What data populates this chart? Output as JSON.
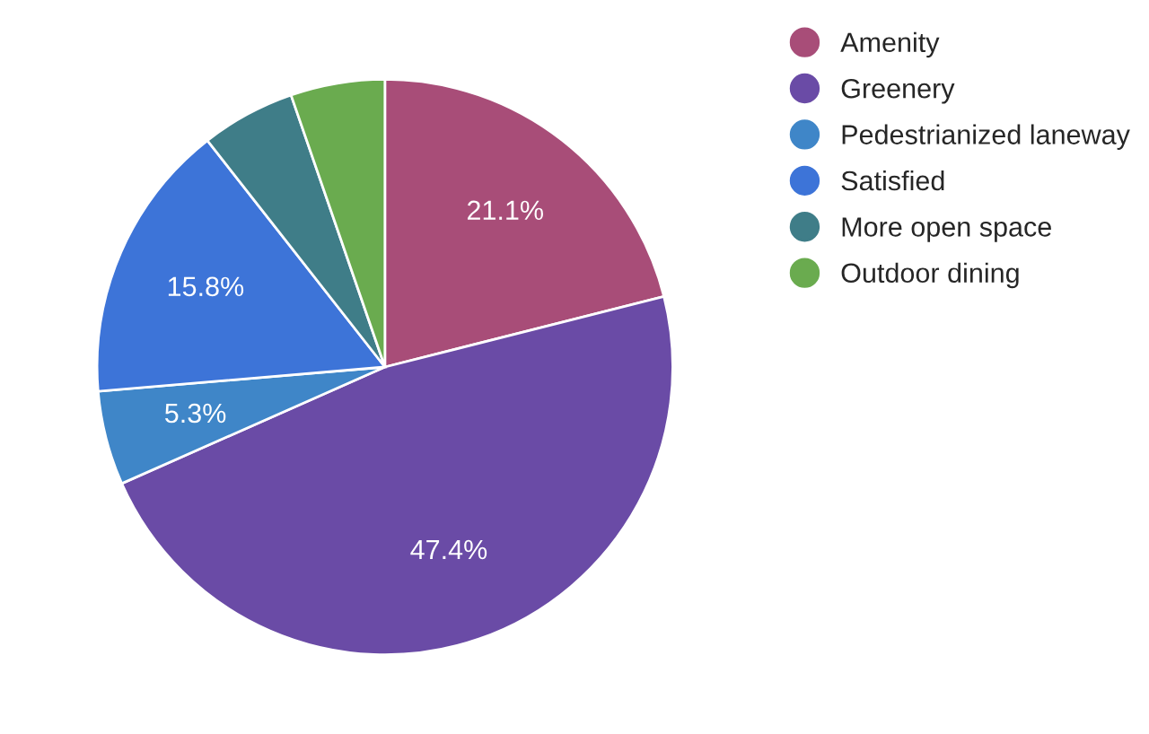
{
  "chart_data": {
    "type": "pie",
    "categories": [
      "Amenity",
      "Greenery",
      "Pedestrianized laneway",
      "Satisfied",
      "More open space",
      "Outdoor dining"
    ],
    "values": [
      21.1,
      47.4,
      5.3,
      15.8,
      5.3,
      5.3
    ],
    "value_labels": [
      "21.1%",
      "47.4%",
      "5.3%",
      "15.8%",
      null,
      null
    ],
    "colors": [
      "#a84d78",
      "#6a4ba6",
      "#3f86c8",
      "#3d74d8",
      "#3f7d88",
      "#6aab4f"
    ],
    "legend": "top right"
  }
}
